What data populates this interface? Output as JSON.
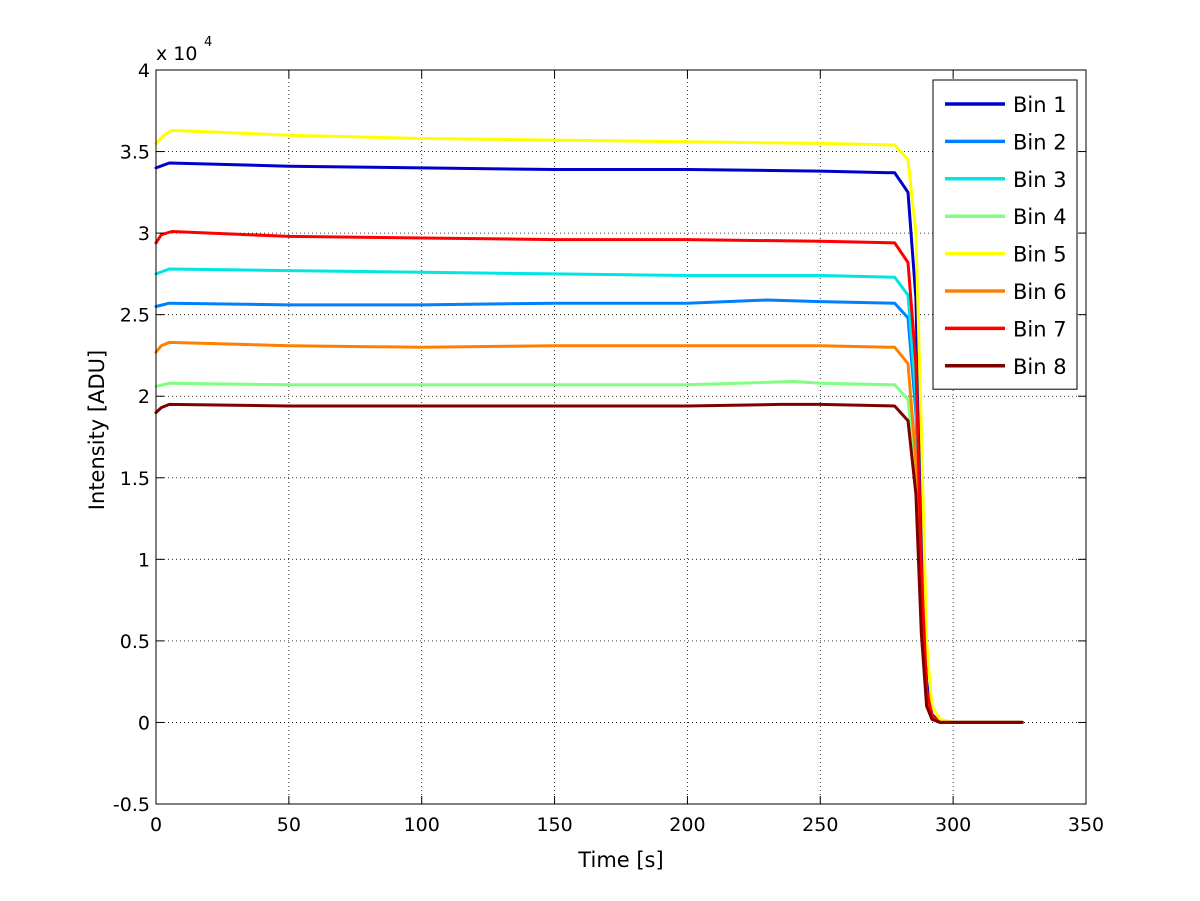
{
  "chart_data": {
    "type": "line",
    "xlabel": "Time [s]",
    "ylabel": "Intensity [ADU]",
    "xlim": [
      0,
      350
    ],
    "ylim": [
      -0.5,
      4
    ],
    "xticks": [
      0,
      50,
      100,
      150,
      200,
      250,
      300,
      350
    ],
    "yticks": [
      -0.5,
      0,
      0.5,
      1,
      1.5,
      2,
      2.5,
      3,
      3.5,
      4
    ],
    "xtick_labels": [
      "0",
      "50",
      "100",
      "150",
      "200",
      "250",
      "300",
      "350"
    ],
    "ytick_labels": [
      "-0.5",
      "0",
      "0.5",
      "1",
      "1.5",
      "2",
      "2.5",
      "3",
      "3.5",
      "4"
    ],
    "y_exponent": {
      "base": "x 10",
      "power": "4"
    },
    "grid": true,
    "legend_position": "top-right",
    "series": [
      {
        "name": "Bin 1",
        "color": "#0000cc",
        "x": [
          0,
          5,
          50,
          100,
          150,
          200,
          250,
          278,
          283,
          286,
          288,
          290,
          292,
          295,
          300,
          326
        ],
        "y": [
          3.4,
          3.43,
          3.41,
          3.4,
          3.39,
          3.39,
          3.38,
          3.37,
          3.25,
          2.6,
          1.2,
          0.25,
          0.05,
          0.0,
          0.0,
          0.0
        ]
      },
      {
        "name": "Bin 2",
        "color": "#0080ff",
        "x": [
          0,
          5,
          50,
          100,
          150,
          200,
          230,
          250,
          278,
          283,
          286,
          288,
          290,
          292,
          295,
          300,
          326
        ],
        "y": [
          2.55,
          2.57,
          2.56,
          2.56,
          2.57,
          2.57,
          2.59,
          2.58,
          2.57,
          2.48,
          1.9,
          0.8,
          0.15,
          0.03,
          0.0,
          0.0,
          0.0
        ]
      },
      {
        "name": "Bin 3",
        "color": "#00e5e5",
        "x": [
          0,
          5,
          50,
          100,
          150,
          200,
          250,
          278,
          283,
          286,
          288,
          290,
          292,
          295,
          300,
          326
        ],
        "y": [
          2.75,
          2.78,
          2.77,
          2.76,
          2.75,
          2.74,
          2.74,
          2.73,
          2.62,
          2.0,
          0.85,
          0.18,
          0.04,
          0.0,
          0.0,
          0.0
        ]
      },
      {
        "name": "Bin 4",
        "color": "#80ff80",
        "x": [
          0,
          5,
          50,
          100,
          150,
          200,
          240,
          250,
          278,
          283,
          286,
          288,
          290,
          292,
          295,
          300,
          326
        ],
        "y": [
          2.06,
          2.08,
          2.07,
          2.07,
          2.07,
          2.07,
          2.09,
          2.08,
          2.07,
          1.98,
          1.5,
          0.6,
          0.12,
          0.02,
          0.0,
          0.0,
          0.0
        ]
      },
      {
        "name": "Bin 5",
        "color": "#ffff00",
        "x": [
          0,
          3,
          6,
          50,
          100,
          150,
          200,
          250,
          278,
          283,
          286,
          288,
          290,
          292,
          295,
          300,
          326
        ],
        "y": [
          3.55,
          3.6,
          3.63,
          3.6,
          3.58,
          3.57,
          3.56,
          3.55,
          3.54,
          3.45,
          3.0,
          1.8,
          0.5,
          0.1,
          0.02,
          0.0,
          0.0
        ]
      },
      {
        "name": "Bin 6",
        "color": "#ff8000",
        "x": [
          0,
          2,
          5,
          50,
          100,
          150,
          200,
          250,
          278,
          283,
          286,
          288,
          290,
          292,
          295,
          300,
          326
        ],
        "y": [
          2.27,
          2.31,
          2.33,
          2.31,
          2.3,
          2.31,
          2.31,
          2.31,
          2.3,
          2.2,
          1.6,
          0.65,
          0.12,
          0.02,
          0.0,
          0.0,
          0.0
        ]
      },
      {
        "name": "Bin 7",
        "color": "#ff0000",
        "x": [
          0,
          2,
          6,
          50,
          100,
          150,
          200,
          250,
          278,
          283,
          286,
          288,
          290,
          292,
          295,
          300,
          326
        ],
        "y": [
          2.94,
          2.99,
          3.01,
          2.98,
          2.97,
          2.96,
          2.96,
          2.95,
          2.94,
          2.82,
          2.2,
          0.95,
          0.2,
          0.04,
          0.0,
          0.0,
          0.0
        ]
      },
      {
        "name": "Bin 8",
        "color": "#800000",
        "x": [
          0,
          2,
          5,
          50,
          100,
          150,
          200,
          235,
          250,
          278,
          283,
          286,
          288,
          290,
          292,
          295,
          300,
          326
        ],
        "y": [
          1.9,
          1.93,
          1.95,
          1.94,
          1.94,
          1.94,
          1.94,
          1.95,
          1.95,
          1.94,
          1.85,
          1.4,
          0.55,
          0.1,
          0.02,
          0.0,
          0.0,
          0.0
        ]
      }
    ]
  }
}
